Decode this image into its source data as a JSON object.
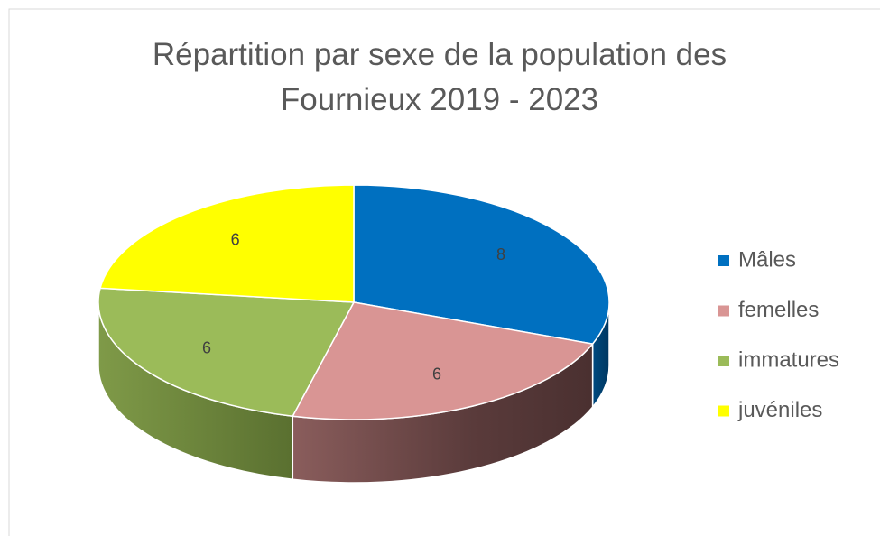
{
  "chart_data": {
    "type": "pie",
    "title": "Répartition par sexe de la population des Fournieux 2019 - 2023",
    "categories": [
      "Mâles",
      "femelles",
      "immatures",
      "juvéniles"
    ],
    "values": [
      8,
      6,
      6,
      6
    ],
    "colors": [
      "#0070c0",
      "#d99594",
      "#9bbb59",
      "#ffff00"
    ],
    "legend": "right"
  }
}
